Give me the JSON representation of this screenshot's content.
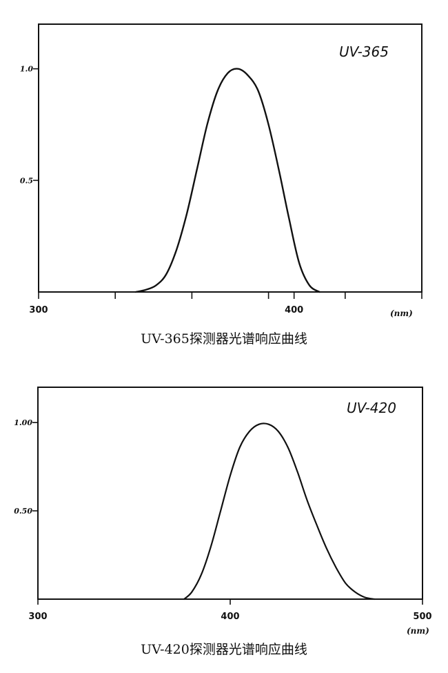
{
  "chart_data": [
    {
      "type": "line",
      "caption": "UV-365探测器光谱响应曲线",
      "series_label": "UV-365",
      "xlabel": "(nm)",
      "xlim": [
        300,
        450
      ],
      "ylim": [
        0,
        1.2
      ],
      "x_tick_values": [
        300,
        330,
        360,
        390,
        400,
        420,
        450
      ],
      "x_tick_labels": [
        {
          "value": 300,
          "text": "300"
        },
        {
          "value": 400,
          "text": "400"
        }
      ],
      "y_ticks": [
        {
          "value": 1.0,
          "text": "1.0"
        },
        {
          "value": 0.5,
          "text": "0.5"
        }
      ],
      "series": [
        {
          "x": [
            338,
            342,
            346,
            350,
            354,
            358,
            362,
            366,
            370,
            374,
            378,
            382,
            386,
            390,
            394,
            398,
            402,
            406,
            410
          ],
          "values": [
            0.0,
            0.01,
            0.03,
            0.08,
            0.19,
            0.35,
            0.55,
            0.75,
            0.9,
            0.98,
            1.0,
            0.97,
            0.9,
            0.75,
            0.55,
            0.33,
            0.13,
            0.03,
            0.0
          ]
        }
      ]
    },
    {
      "type": "line",
      "caption": "UV-420探测器光谱响应曲线",
      "series_label": "UV-420",
      "xlabel": "(nm)",
      "xlim": [
        300,
        500
      ],
      "ylim": [
        0,
        1.2
      ],
      "x_tick_values": [
        300,
        400,
        500
      ],
      "x_tick_labels": [
        {
          "value": 300,
          "text": "300"
        },
        {
          "value": 400,
          "text": "400"
        },
        {
          "value": 500,
          "text": "500"
        }
      ],
      "y_ticks": [
        {
          "value": 1.0,
          "text": "1.00"
        },
        {
          "value": 0.5,
          "text": "0.50"
        }
      ],
      "series": [
        {
          "x": [
            376,
            380,
            385,
            390,
            395,
            400,
            405,
            410,
            415,
            420,
            425,
            430,
            435,
            440,
            445,
            450,
            455,
            460,
            465,
            470,
            475
          ],
          "values": [
            0.0,
            0.04,
            0.14,
            0.3,
            0.5,
            0.7,
            0.86,
            0.95,
            0.99,
            0.99,
            0.95,
            0.86,
            0.72,
            0.56,
            0.42,
            0.29,
            0.18,
            0.09,
            0.04,
            0.01,
            0.0
          ]
        }
      ]
    }
  ]
}
